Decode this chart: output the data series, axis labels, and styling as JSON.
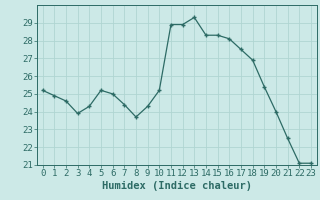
{
  "x": [
    0,
    1,
    2,
    3,
    4,
    5,
    6,
    7,
    8,
    9,
    10,
    11,
    12,
    13,
    14,
    15,
    16,
    17,
    18,
    19,
    20,
    21,
    22,
    23
  ],
  "y": [
    25.2,
    24.9,
    24.6,
    23.9,
    24.3,
    25.2,
    25.0,
    24.4,
    23.7,
    24.3,
    25.2,
    28.9,
    28.9,
    29.3,
    28.3,
    28.3,
    28.1,
    27.5,
    26.9,
    25.4,
    24.0,
    22.5,
    21.1,
    21.1
  ],
  "bg_color": "#cce9e7",
  "line_color": "#2d6b65",
  "marker_color": "#2d6b65",
  "grid_color": "#b0d5d2",
  "axis_label_color": "#2d6b65",
  "tick_color": "#2d6b65",
  "xlabel": "Humidex (Indice chaleur)",
  "ylim": [
    21,
    30
  ],
  "xlim": [
    -0.5,
    23.5
  ],
  "yticks": [
    21,
    22,
    23,
    24,
    25,
    26,
    27,
    28,
    29
  ],
  "xticks": [
    0,
    1,
    2,
    3,
    4,
    5,
    6,
    7,
    8,
    9,
    10,
    11,
    12,
    13,
    14,
    15,
    16,
    17,
    18,
    19,
    20,
    21,
    22,
    23
  ],
  "font_size": 6.5,
  "label_font_size": 7.5
}
